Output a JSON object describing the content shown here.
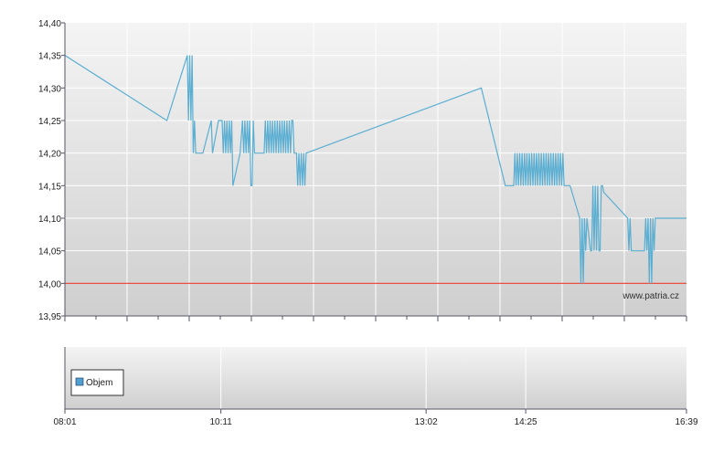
{
  "colors": {
    "price_line": "#5aaed2",
    "reference_line": "#e8382a",
    "volume_swatch": "#4f9fd0",
    "grid": "#ffffff",
    "axis": "#555566"
  },
  "chart_data": [
    {
      "type": "line",
      "title": "",
      "xlabel": "",
      "ylabel": "",
      "ylim": [
        13.95,
        14.4
      ],
      "y_ticks": [
        "13,95",
        "14,00",
        "14,05",
        "14,10",
        "14,15",
        "14,20",
        "14,25",
        "14,30",
        "14,35",
        "14,40"
      ],
      "x_range": [
        "08:01",
        "16:39"
      ],
      "grid": true,
      "reference_line": {
        "value": 14.0
      },
      "watermark": "www.patria.cz",
      "series": [
        {
          "values": [
            [
              "08:01",
              14.35
            ],
            [
              "09:26",
              14.25
            ],
            [
              "09:43",
              14.35
            ],
            [
              "09:44",
              14.25
            ],
            [
              "09:45",
              14.35
            ],
            [
              "09:46",
              14.25
            ],
            [
              "09:47",
              14.35
            ],
            [
              "09:48",
              14.2
            ],
            [
              "09:49",
              14.25
            ],
            [
              "09:50",
              14.2
            ],
            [
              "09:56",
              14.2
            ],
            [
              "10:03",
              14.25
            ],
            [
              "10:04",
              14.2
            ],
            [
              "10:09",
              14.25
            ],
            [
              "10:12",
              14.25
            ],
            [
              "10:13",
              14.2
            ],
            [
              "10:14",
              14.25
            ],
            [
              "10:15",
              14.2
            ],
            [
              "10:16",
              14.25
            ],
            [
              "10:17",
              14.2
            ],
            [
              "10:18",
              14.25
            ],
            [
              "10:19",
              14.2
            ],
            [
              "10:20",
              14.25
            ],
            [
              "10:21",
              14.15
            ],
            [
              "10:27",
              14.2
            ],
            [
              "10:29",
              14.25
            ],
            [
              "10:30",
              14.2
            ],
            [
              "10:31",
              14.25
            ],
            [
              "10:32",
              14.2
            ],
            [
              "10:33",
              14.25
            ],
            [
              "10:34",
              14.2
            ],
            [
              "10:35",
              14.25
            ],
            [
              "10:36",
              14.15
            ],
            [
              "10:37",
              14.15
            ],
            [
              "10:38",
              14.25
            ],
            [
              "10:39",
              14.2
            ],
            [
              "10:47",
              14.2
            ],
            [
              "10:48",
              14.25
            ],
            [
              "10:49",
              14.2
            ],
            [
              "10:50",
              14.25
            ],
            [
              "10:51",
              14.2
            ],
            [
              "10:52",
              14.25
            ],
            [
              "10:53",
              14.2
            ],
            [
              "10:54",
              14.25
            ],
            [
              "10:55",
              14.2
            ],
            [
              "10:56",
              14.25
            ],
            [
              "10:57",
              14.2
            ],
            [
              "10:58",
              14.25
            ],
            [
              "10:59",
              14.2
            ],
            [
              "11:00",
              14.25
            ],
            [
              "11:01",
              14.2
            ],
            [
              "11:02",
              14.25
            ],
            [
              "11:03",
              14.2
            ],
            [
              "11:04",
              14.25
            ],
            [
              "11:05",
              14.2
            ],
            [
              "11:06",
              14.25
            ],
            [
              "11:07",
              14.2
            ],
            [
              "11:08",
              14.25
            ],
            [
              "11:09",
              14.2
            ],
            [
              "11:10",
              14.25
            ],
            [
              "11:11",
              14.25
            ],
            [
              "11:12",
              14.2
            ],
            [
              "11:14",
              14.2
            ],
            [
              "11:15",
              14.15
            ],
            [
              "11:16",
              14.2
            ],
            [
              "11:17",
              14.15
            ],
            [
              "11:18",
              14.2
            ],
            [
              "11:19",
              14.15
            ],
            [
              "11:20",
              14.2
            ],
            [
              "11:21",
              14.15
            ],
            [
              "11:22",
              14.2
            ],
            [
              "13:48",
              14.3
            ],
            [
              "14:08",
              14.15
            ],
            [
              "14:15",
              14.15
            ],
            [
              "14:16",
              14.2
            ],
            [
              "14:17",
              14.15
            ],
            [
              "14:18",
              14.2
            ],
            [
              "14:19",
              14.15
            ],
            [
              "14:20",
              14.2
            ],
            [
              "14:21",
              14.15
            ],
            [
              "14:22",
              14.2
            ],
            [
              "14:23",
              14.15
            ],
            [
              "14:24",
              14.2
            ],
            [
              "14:25",
              14.15
            ],
            [
              "14:26",
              14.2
            ],
            [
              "14:27",
              14.15
            ],
            [
              "14:28",
              14.2
            ],
            [
              "14:29",
              14.15
            ],
            [
              "14:30",
              14.2
            ],
            [
              "14:31",
              14.15
            ],
            [
              "14:32",
              14.2
            ],
            [
              "14:33",
              14.15
            ],
            [
              "14:34",
              14.2
            ],
            [
              "14:35",
              14.15
            ],
            [
              "14:36",
              14.2
            ],
            [
              "14:37",
              14.15
            ],
            [
              "14:38",
              14.2
            ],
            [
              "14:39",
              14.15
            ],
            [
              "14:40",
              14.2
            ],
            [
              "14:41",
              14.15
            ],
            [
              "14:42",
              14.2
            ],
            [
              "14:43",
              14.15
            ],
            [
              "14:44",
              14.2
            ],
            [
              "14:45",
              14.15
            ],
            [
              "14:46",
              14.2
            ],
            [
              "14:47",
              14.15
            ],
            [
              "14:48",
              14.2
            ],
            [
              "14:49",
              14.15
            ],
            [
              "14:50",
              14.2
            ],
            [
              "14:51",
              14.15
            ],
            [
              "14:52",
              14.2
            ],
            [
              "14:53",
              14.15
            ],
            [
              "14:54",
              14.2
            ],
            [
              "14:55",
              14.15
            ],
            [
              "14:56",
              14.2
            ],
            [
              "14:57",
              14.15
            ],
            [
              "15:02",
              14.15
            ],
            [
              "15:10",
              14.1
            ],
            [
              "15:11",
              14.0
            ],
            [
              "15:12",
              14.1
            ],
            [
              "15:13",
              14.0
            ],
            [
              "15:14",
              14.1
            ],
            [
              "15:15",
              14.05
            ],
            [
              "15:16",
              14.1
            ],
            [
              "15:19",
              14.05
            ],
            [
              "15:20",
              14.05
            ],
            [
              "15:21",
              14.15
            ],
            [
              "15:22",
              14.05
            ],
            [
              "15:23",
              14.15
            ],
            [
              "15:24",
              14.05
            ],
            [
              "15:25",
              14.15
            ],
            [
              "15:26",
              14.05
            ],
            [
              "15:27",
              14.05
            ],
            [
              "15:28",
              14.15
            ],
            [
              "15:29",
              14.15
            ],
            [
              "15:30",
              14.14
            ],
            [
              "15:50",
              14.1
            ],
            [
              "15:51",
              14.05
            ],
            [
              "15:52",
              14.1
            ],
            [
              "15:53",
              14.05
            ],
            [
              "16:04",
              14.05
            ],
            [
              "16:05",
              14.1
            ],
            [
              "16:06",
              14.05
            ],
            [
              "16:07",
              14.1
            ],
            [
              "16:08",
              14.0
            ],
            [
              "16:09",
              14.1
            ],
            [
              "16:10",
              14.0
            ],
            [
              "16:11",
              14.1
            ],
            [
              "16:12",
              14.05
            ],
            [
              "16:13",
              14.1
            ],
            [
              "16:39",
              14.1
            ]
          ]
        }
      ]
    },
    {
      "type": "bar",
      "title": "",
      "x_ticks": [
        "08:01",
        "10:11",
        "13:02",
        "14:25",
        "16:39"
      ],
      "grid": true,
      "legend_position": "bottom-left",
      "series": [
        {
          "name": "Objem",
          "values": []
        }
      ]
    }
  ]
}
